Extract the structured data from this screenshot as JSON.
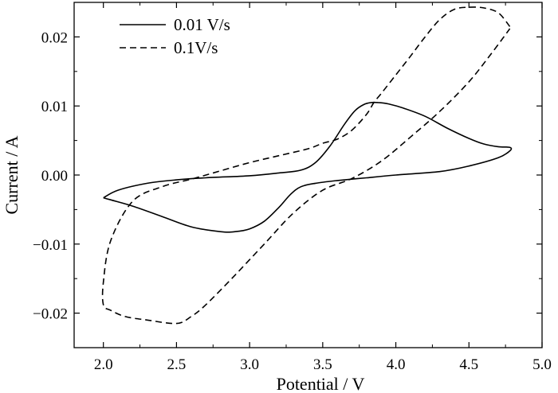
{
  "chart_data": {
    "type": "line",
    "title": "",
    "xlabel": "Potential / V",
    "ylabel": "Current / A",
    "xlim": [
      1.8,
      5.0
    ],
    "ylim": [
      -0.025,
      0.025
    ],
    "xticks": [
      2.0,
      2.5,
      3.0,
      3.5,
      4.0,
      4.5,
      5.0
    ],
    "xtick_labels": [
      "2.0",
      "2.5",
      "3.0",
      "3.5",
      "4.0",
      "4.5",
      "5.0"
    ],
    "yticks": [
      0.02,
      0.01,
      0.0,
      -0.01,
      -0.02
    ],
    "ytick_labels": [
      "0.02",
      "0.01",
      "0.00",
      "−0.01",
      "−0.02"
    ],
    "grid": false,
    "legend_position": "top-left",
    "series": [
      {
        "name": "0.01 V/s",
        "style": "solid",
        "color": "#000000",
        "x": [
          2.0,
          2.1,
          2.3,
          2.5,
          2.7,
          3.0,
          3.2,
          3.35,
          3.45,
          3.55,
          3.65,
          3.72,
          3.78,
          3.83,
          3.88,
          3.95,
          4.05,
          4.2,
          4.35,
          4.5,
          4.6,
          4.7,
          4.78,
          4.78,
          4.7,
          4.5,
          4.3,
          4.0,
          3.8,
          3.6,
          3.45,
          3.35,
          3.28,
          3.2,
          3.1,
          3.0,
          2.9,
          2.8,
          2.6,
          2.4,
          2.2,
          2.05,
          2.0
        ],
        "y": [
          -0.0033,
          -0.0022,
          -0.0012,
          -0.0007,
          -0.0004,
          -0.0001,
          0.0003,
          0.0007,
          0.0018,
          0.0042,
          0.0074,
          0.0093,
          0.0102,
          0.0105,
          0.0105,
          0.0103,
          0.0097,
          0.0085,
          0.0068,
          0.0053,
          0.0045,
          0.0041,
          0.004,
          0.0035,
          0.0025,
          0.0013,
          0.0005,
          0.0,
          -0.0004,
          -0.0008,
          -0.0012,
          -0.0017,
          -0.0028,
          -0.0047,
          -0.0067,
          -0.0078,
          -0.0082,
          -0.0082,
          -0.0075,
          -0.006,
          -0.0045,
          -0.0036,
          -0.0033
        ]
      },
      {
        "name": "0.1V/s",
        "style": "dashed",
        "color": "#000000",
        "x": [
          4.78,
          4.7,
          4.6,
          4.5,
          4.4,
          4.3,
          4.2,
          4.1,
          4.0,
          3.9,
          3.85,
          3.8,
          3.7,
          3.6,
          3.5,
          3.4,
          3.2,
          3.0,
          2.8,
          2.6,
          2.4,
          2.2,
          2.05,
          2.0,
          2.0,
          2.05,
          2.15,
          2.3,
          2.5,
          2.6,
          2.7,
          2.9,
          3.1,
          3.3,
          3.5,
          3.7,
          3.9,
          4.1,
          4.3,
          4.5,
          4.65,
          4.78
        ],
        "y": [
          0.0215,
          0.0235,
          0.0242,
          0.0243,
          0.024,
          0.0225,
          0.02,
          0.0172,
          0.0145,
          0.0118,
          0.0105,
          0.0088,
          0.0065,
          0.0052,
          0.0046,
          0.0038,
          0.0028,
          0.0018,
          0.0006,
          -0.0006,
          -0.0017,
          -0.0038,
          -0.0095,
          -0.0155,
          -0.0188,
          -0.0196,
          -0.0205,
          -0.021,
          -0.0215,
          -0.0205,
          -0.0188,
          -0.0145,
          -0.01,
          -0.0055,
          -0.0022,
          -0.0005,
          0.002,
          0.0055,
          0.0092,
          0.0135,
          0.0175,
          0.0212
        ]
      }
    ]
  }
}
